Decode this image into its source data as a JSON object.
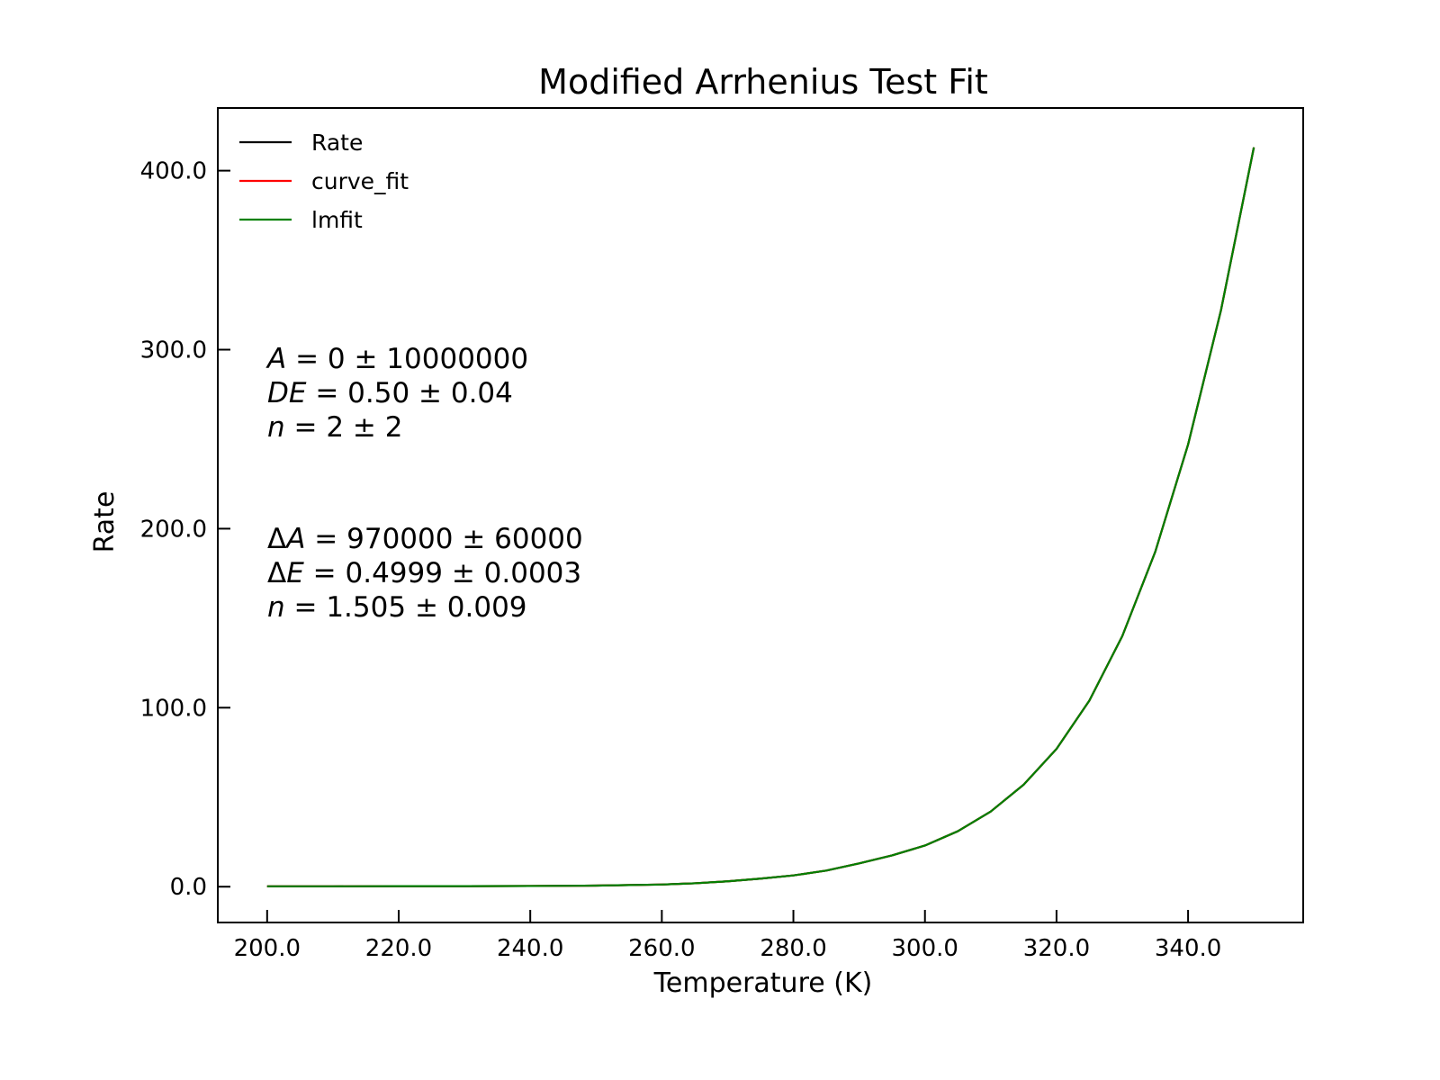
{
  "chart_data": {
    "type": "line",
    "title": "Modified Arrhenius Test Fit",
    "xlabel": "Temperature (K)",
    "ylabel": "Rate",
    "xlim": [
      192.5,
      357.5
    ],
    "ylim": [
      -20,
      435
    ],
    "xticks": [
      200,
      220,
      240,
      260,
      280,
      300,
      320,
      340
    ],
    "xtick_labels": [
      "200.0",
      "220.0",
      "240.0",
      "260.0",
      "280.0",
      "300.0",
      "320.0",
      "340.0"
    ],
    "yticks": [
      0,
      100,
      200,
      300,
      400
    ],
    "ytick_labels": [
      "0.0",
      "100.0",
      "200.0",
      "300.0",
      "400.0"
    ],
    "grid": false,
    "legend_position": "top-left",
    "x": [
      200,
      210,
      220,
      230,
      240,
      250,
      260,
      265,
      270,
      275,
      280,
      285,
      290,
      295,
      300,
      305,
      310,
      315,
      320,
      325,
      330,
      335,
      340,
      345,
      350
    ],
    "series": [
      {
        "name": "Rate",
        "color": "#000000",
        "values": [
          0.2,
          0.2,
          0.3,
          0.3,
          0.4,
          0.6,
          1.2,
          1.9,
          3.0,
          4.5,
          6.3,
          9.0,
          13.0,
          17.5,
          23.0,
          31.0,
          42.0,
          57.0,
          77.0,
          104.0,
          140.0,
          187.0,
          247.0,
          322.0,
          413.0
        ]
      },
      {
        "name": "curve_fit",
        "color": "#ff0000",
        "values": [
          0.2,
          0.2,
          0.3,
          0.3,
          0.4,
          0.6,
          1.2,
          1.9,
          3.0,
          4.5,
          6.3,
          9.0,
          13.0,
          17.5,
          23.0,
          31.0,
          42.0,
          57.0,
          77.0,
          104.0,
          140.0,
          187.0,
          247.0,
          322.0,
          413.0
        ]
      },
      {
        "name": "lmfit",
        "color": "#008000",
        "values": [
          0.2,
          0.2,
          0.3,
          0.3,
          0.4,
          0.6,
          1.2,
          1.9,
          3.0,
          4.5,
          6.3,
          9.0,
          13.0,
          17.5,
          23.0,
          31.0,
          42.0,
          57.0,
          77.0,
          104.0,
          140.0,
          187.0,
          247.0,
          322.0,
          413.0
        ]
      }
    ],
    "annotations": {
      "block1": [
        {
          "var": "A",
          "expr": " = 0 ± 10000000"
        },
        {
          "var": "DE",
          "expr": " = 0.50 ± 0.04"
        },
        {
          "var": "n",
          "expr": " = 2 ± 2"
        }
      ],
      "block2": [
        {
          "prefix": "Δ",
          "var": "A",
          "expr": " = 970000 ± 60000"
        },
        {
          "prefix": "Δ",
          "var": "E",
          "expr": " = 0.4999 ± 0.0003"
        },
        {
          "var": "n",
          "expr": " = 1.505 ± 0.009"
        }
      ]
    }
  }
}
